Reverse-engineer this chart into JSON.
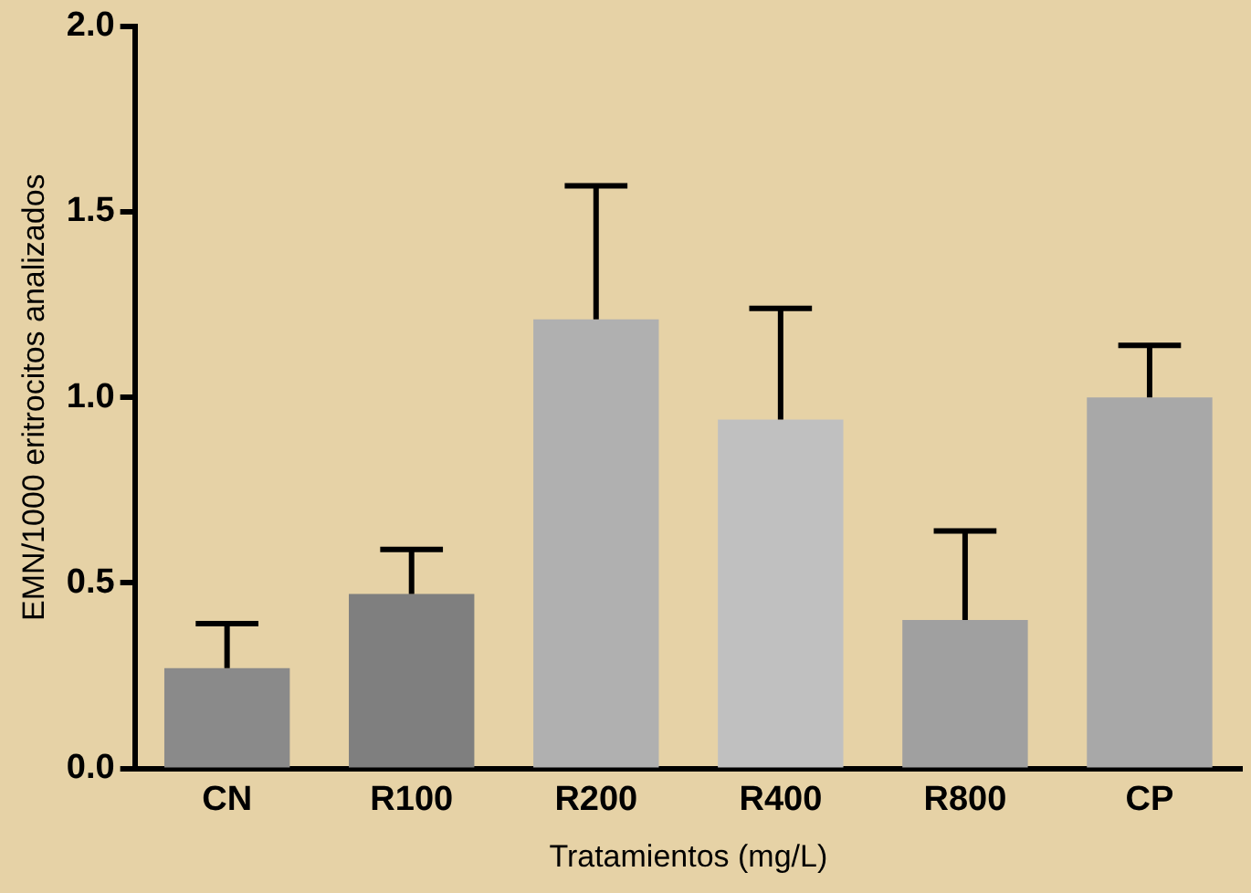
{
  "chart_data": {
    "type": "bar",
    "xlabel": "Tratamientos (mg/L)",
    "ylabel": "EMN/1000 eritrocitos analizados",
    "categories": [
      "CN",
      "R100",
      "R200",
      "R400",
      "R800",
      "CP"
    ],
    "values": [
      0.27,
      0.47,
      1.21,
      0.94,
      0.4,
      1.0
    ],
    "colors": [
      "#8a8a8a",
      "#7f7f7f",
      "#b0b0b0",
      "#c0c0c0",
      "#a0a0a0",
      "#a8a8a8"
    ],
    "errors": [
      [
        0.27,
        0.39
      ],
      [
        0.47,
        0.59
      ],
      [
        1.21,
        1.57
      ],
      [
        0.94,
        1.24
      ],
      [
        0.4,
        0.64
      ],
      [
        1.0,
        1.14
      ]
    ],
    "ylim": [
      0,
      2.0
    ],
    "yticks": [
      {
        "value": 0,
        "label": "0.0"
      },
      {
        "value": 0.5,
        "label": "0.5"
      },
      {
        "value": 1,
        "label": "1.0"
      },
      {
        "value": 1.5,
        "label": "1.5"
      },
      {
        "value": 2,
        "label": "2.0"
      }
    ],
    "grid": false,
    "legend": false
  }
}
